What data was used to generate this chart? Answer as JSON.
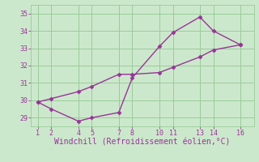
{
  "line1_x": [
    1,
    2,
    4,
    5,
    7,
    8,
    10,
    11,
    13,
    14,
    16
  ],
  "line1_y": [
    29.9,
    29.5,
    28.8,
    29.0,
    29.3,
    31.3,
    33.1,
    33.9,
    34.8,
    34.0,
    33.2
  ],
  "line2_x": [
    1,
    2,
    4,
    5,
    7,
    8,
    10,
    11,
    13,
    14,
    16
  ],
  "line2_y": [
    29.9,
    30.1,
    30.5,
    30.8,
    31.5,
    31.5,
    31.6,
    31.9,
    32.5,
    32.9,
    33.2
  ],
  "line_color": "#993399",
  "bg_color": "#cce8cc",
  "grid_color": "#99cc99",
  "xlabel": "Windchill (Refroidissement éolien,°C)",
  "xlabel_color": "#993399",
  "xticks": [
    1,
    2,
    4,
    5,
    7,
    8,
    10,
    11,
    13,
    14,
    16
  ],
  "yticks": [
    29,
    30,
    31,
    32,
    33,
    34,
    35
  ],
  "xlim": [
    0.5,
    17
  ],
  "ylim": [
    28.5,
    35.5
  ],
  "tick_color": "#993399",
  "marker": "D",
  "marker_size": 2.5,
  "line_width": 1.0,
  "font_size_tick": 6,
  "font_size_xlabel": 7,
  "font_family": "monospace"
}
